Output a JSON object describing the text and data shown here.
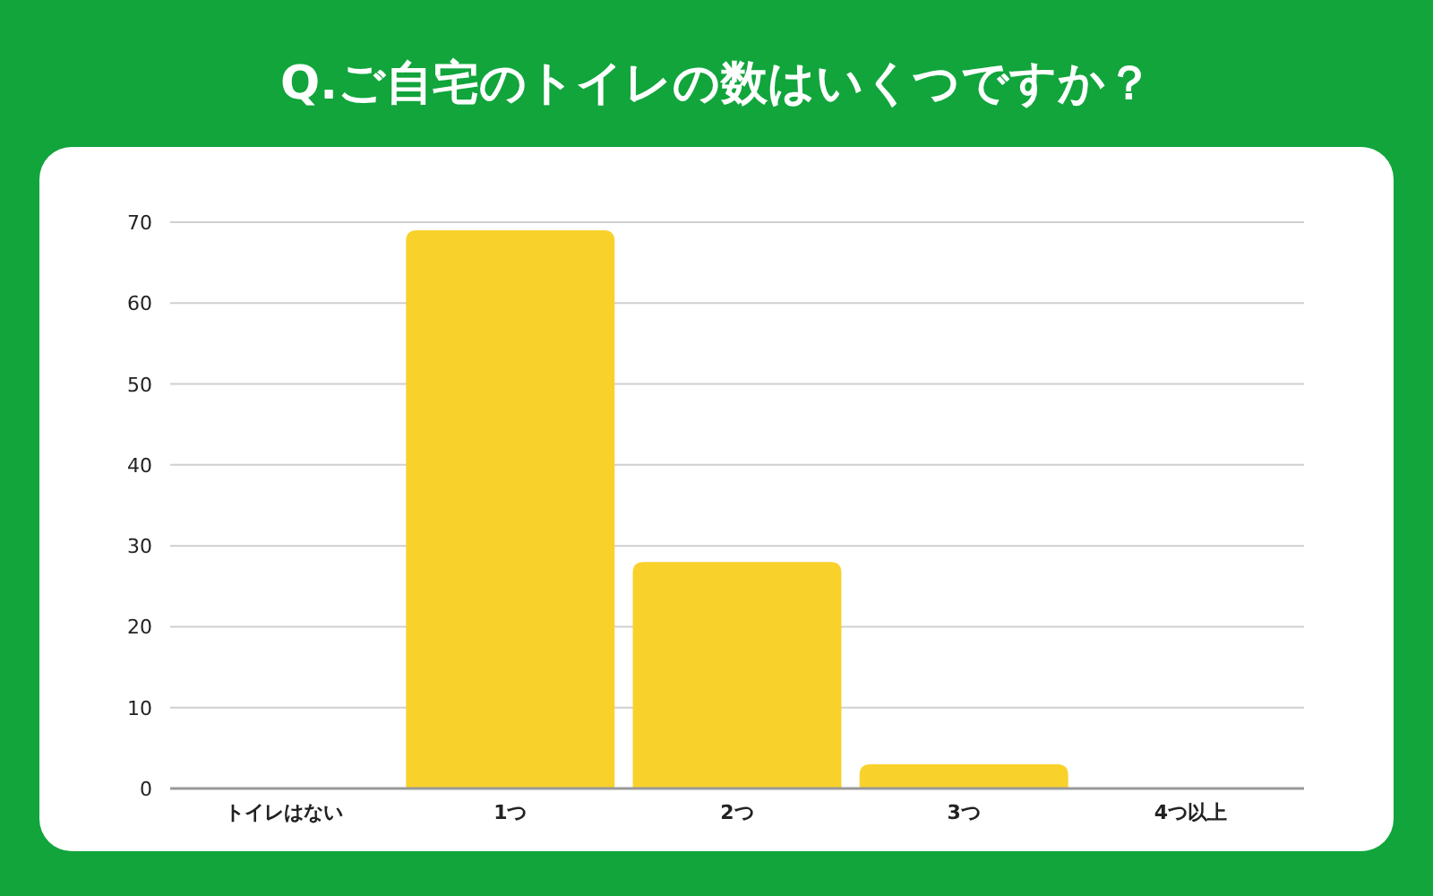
{
  "chart_data": {
    "type": "bar",
    "title": "Q.ご自宅のトイレの数はいくつですか？",
    "categories": [
      "トイレはない",
      "1つ",
      "2つ",
      "3つ",
      "4つ以上"
    ],
    "values": [
      0,
      69,
      28,
      3,
      0
    ],
    "color": "#f9d12b",
    "ylim": [
      0,
      70
    ],
    "yticks": [
      0,
      10,
      20,
      30,
      40,
      50,
      60,
      70
    ],
    "grid": "y"
  }
}
